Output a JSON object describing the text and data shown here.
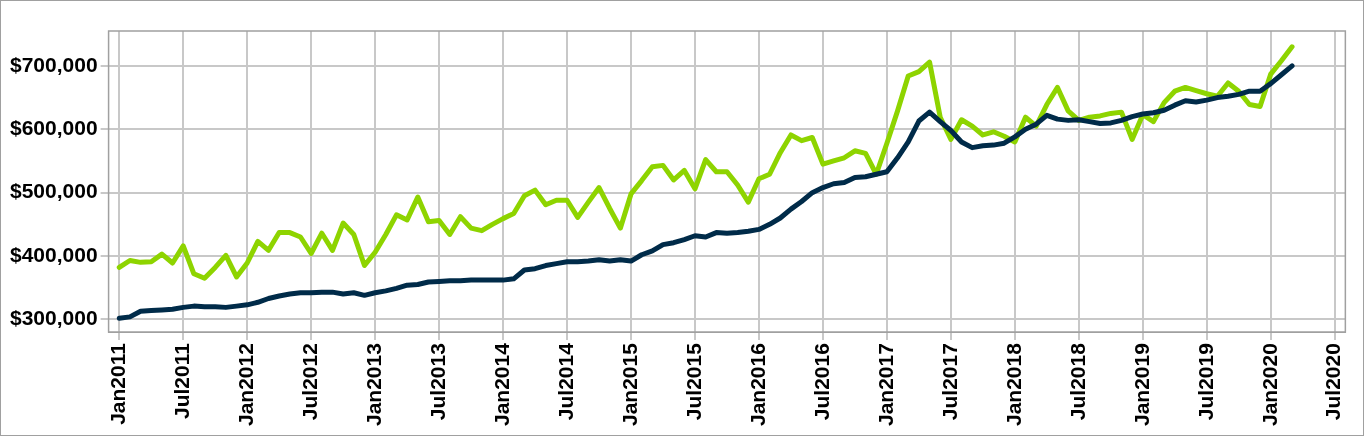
{
  "chart_data": {
    "type": "line",
    "x": [
      "2011-01",
      "2011-02",
      "2011-03",
      "2011-04",
      "2011-05",
      "2011-06",
      "2011-07",
      "2011-08",
      "2011-09",
      "2011-10",
      "2011-11",
      "2011-12",
      "2012-01",
      "2012-02",
      "2012-03",
      "2012-04",
      "2012-05",
      "2012-06",
      "2012-07",
      "2012-08",
      "2012-09",
      "2012-10",
      "2012-11",
      "2012-12",
      "2013-01",
      "2013-02",
      "2013-03",
      "2013-04",
      "2013-05",
      "2013-06",
      "2013-07",
      "2013-08",
      "2013-09",
      "2013-10",
      "2013-11",
      "2013-12",
      "2014-01",
      "2014-02",
      "2014-03",
      "2014-04",
      "2014-05",
      "2014-06",
      "2014-07",
      "2014-08",
      "2014-09",
      "2014-10",
      "2014-11",
      "2014-12",
      "2015-01",
      "2015-02",
      "2015-03",
      "2015-04",
      "2015-05",
      "2015-06",
      "2015-07",
      "2015-08",
      "2015-09",
      "2015-10",
      "2015-11",
      "2015-12",
      "2016-01",
      "2016-02",
      "2016-03",
      "2016-04",
      "2016-05",
      "2016-06",
      "2016-07",
      "2016-08",
      "2016-09",
      "2016-10",
      "2016-11",
      "2016-12",
      "2017-01",
      "2017-02",
      "2017-03",
      "2017-04",
      "2017-05",
      "2017-06",
      "2017-07",
      "2017-08",
      "2017-09",
      "2017-10",
      "2017-11",
      "2017-12",
      "2018-01",
      "2018-02",
      "2018-03",
      "2018-04",
      "2018-05",
      "2018-06",
      "2018-07",
      "2018-08",
      "2018-09",
      "2018-10",
      "2018-11",
      "2018-12",
      "2019-01",
      "2019-02",
      "2019-03",
      "2019-04",
      "2019-05",
      "2019-06",
      "2019-07",
      "2019-08",
      "2019-09",
      "2019-10",
      "2019-11",
      "2019-12",
      "2020-01",
      "2020-02",
      "2020-03"
    ],
    "series": [
      {
        "color": "#002b49",
        "values": [
          302000,
          304000,
          313000,
          314000,
          315000,
          316000,
          319000,
          321000,
          320000,
          320000,
          319000,
          321000,
          323000,
          327000,
          333000,
          337000,
          340000,
          342000,
          342000,
          343000,
          343000,
          340000,
          342000,
          338000,
          342000,
          345000,
          349000,
          354000,
          355000,
          359000,
          360000,
          361000,
          361000,
          362000,
          362000,
          362000,
          362000,
          364000,
          378000,
          380000,
          385000,
          388000,
          391000,
          391000,
          392000,
          394000,
          392000,
          394000,
          392000,
          402000,
          408000,
          418000,
          421000,
          426000,
          432000,
          430000,
          437000,
          436000,
          437000,
          439000,
          442000,
          450000,
          460000,
          474000,
          486000,
          500000,
          508000,
          514000,
          516000,
          524000,
          525000,
          529000,
          533000,
          555000,
          580000,
          613000,
          627000,
          612000,
          598000,
          580000,
          571000,
          574000,
          575000,
          578000,
          588000,
          600000,
          608000,
          622000,
          616000,
          614000,
          615000,
          612000,
          609000,
          610000,
          614000,
          620000,
          624000,
          626000,
          630000,
          638000,
          645000,
          643000,
          646000,
          650000,
          652000,
          655000,
          660000,
          660000,
          672000,
          686000,
          700000
        ]
      },
      {
        "color": "#8ed400",
        "values": [
          382000,
          393000,
          390000,
          391000,
          403000,
          389000,
          416000,
          372000,
          365000,
          382000,
          401000,
          367000,
          389000,
          423000,
          409000,
          437000,
          437000,
          430000,
          404000,
          436000,
          409000,
          452000,
          434000,
          385000,
          406000,
          434000,
          465000,
          457000,
          493000,
          454000,
          456000,
          434000,
          462000,
          444000,
          440000,
          450000,
          459000,
          467000,
          495000,
          504000,
          481000,
          488000,
          488000,
          461000,
          485000,
          508000,
          475000,
          444000,
          498000,
          519000,
          541000,
          543000,
          520000,
          535000,
          506000,
          552000,
          533000,
          533000,
          512000,
          485000,
          522000,
          529000,
          563000,
          591000,
          582000,
          587000,
          545000,
          550000,
          555000,
          566000,
          562000,
          529000,
          578000,
          629000,
          684000,
          691000,
          706000,
          619000,
          584000,
          615000,
          605000,
          591000,
          596000,
          589000,
          580000,
          619000,
          605000,
          639000,
          666000,
          629000,
          614000,
          619000,
          621000,
          625000,
          627000,
          584000,
          623000,
          612000,
          642000,
          660000,
          666000,
          661000,
          656000,
          652000,
          673000,
          660000,
          639000,
          636000,
          687000,
          708000,
          730000
        ]
      }
    ],
    "xlim": [
      "2010-12",
      "2020-08"
    ],
    "xticks": [
      {
        "value": "2011-01",
        "label": "Jan2011"
      },
      {
        "value": "2011-07",
        "label": "Jul2011"
      },
      {
        "value": "2012-01",
        "label": "Jan2012"
      },
      {
        "value": "2012-07",
        "label": "Jul2012"
      },
      {
        "value": "2013-01",
        "label": "Jan2013"
      },
      {
        "value": "2013-07",
        "label": "Jul2013"
      },
      {
        "value": "2014-01",
        "label": "Jan2014"
      },
      {
        "value": "2014-07",
        "label": "Jul2014"
      },
      {
        "value": "2015-01",
        "label": "Jan2015"
      },
      {
        "value": "2015-07",
        "label": "Jul2015"
      },
      {
        "value": "2016-01",
        "label": "Jan2016"
      },
      {
        "value": "2016-07",
        "label": "Jul2016"
      },
      {
        "value": "2017-01",
        "label": "Jan2017"
      },
      {
        "value": "2017-07",
        "label": "Jul2017"
      },
      {
        "value": "2018-01",
        "label": "Jan2018"
      },
      {
        "value": "2018-07",
        "label": "Jul2018"
      },
      {
        "value": "2019-01",
        "label": "Jan2019"
      },
      {
        "value": "2019-07",
        "label": "Jul2019"
      },
      {
        "value": "2020-01",
        "label": "Jan2020"
      },
      {
        "value": "2020-07",
        "label": "Jul2020"
      }
    ],
    "ylim": [
      280000,
      755000
    ],
    "yticks": [
      {
        "value": 300000,
        "label": "$300,000"
      },
      {
        "value": 400000,
        "label": "$400,000"
      },
      {
        "value": 500000,
        "label": "$500,000"
      },
      {
        "value": 600000,
        "label": "$600,000"
      },
      {
        "value": 700000,
        "label": "$700,000"
      }
    ],
    "grid": true,
    "legend": false,
    "marker": "none",
    "line_style": "solid"
  }
}
